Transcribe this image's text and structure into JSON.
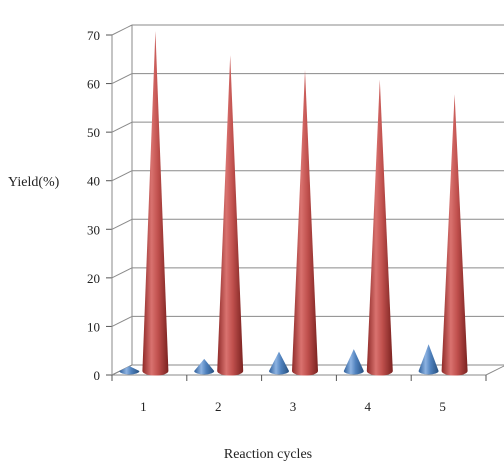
{
  "chart_data": {
    "type": "bar",
    "style": "3d-cone",
    "title": "",
    "xlabel": "Reaction cycles",
    "ylabel": "Yield(%)",
    "categories": [
      "1",
      "2",
      "3",
      "4",
      "5"
    ],
    "ylim": [
      0,
      70
    ],
    "yticks": [
      "0",
      "10",
      "20",
      "30",
      "40",
      "50",
      "60",
      "70"
    ],
    "grid": true,
    "legend": "none",
    "series": [
      {
        "values": [
          1,
          2.5,
          4,
          4.5,
          5.5
        ],
        "color": "#4F81BD"
      },
      {
        "values": [
          70,
          65,
          62,
          60,
          57
        ],
        "color": "#C0504D"
      }
    ]
  }
}
